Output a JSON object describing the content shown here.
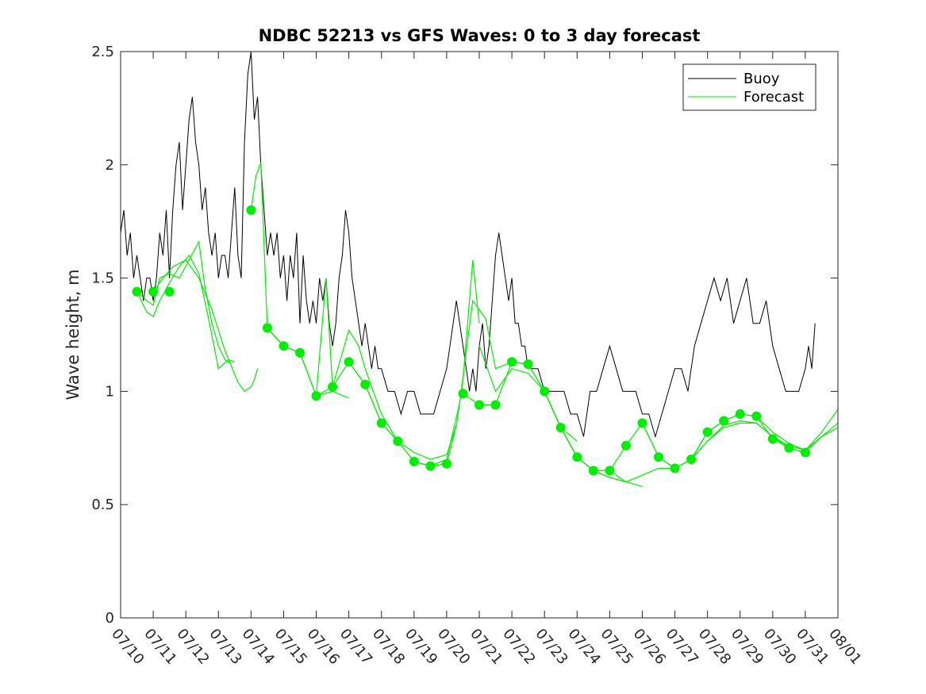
{
  "chart_data": {
    "type": "line",
    "title": "NDBC 52213 vs GFS Waves: 0 to 3 day forecast",
    "xlabel": "",
    "ylabel": "Wave height, m",
    "xlim": [
      0,
      22
    ],
    "ylim": [
      0,
      2.5
    ],
    "y_ticks": [
      0,
      0.5,
      1,
      1.5,
      2,
      2.5
    ],
    "y_tick_labels": [
      "0",
      "0.5",
      "1",
      "1.5",
      "2",
      "2.5"
    ],
    "x_tick_labels": [
      "07/10",
      "07/11",
      "07/12",
      "07/13",
      "07/14",
      "07/15",
      "07/16",
      "07/17",
      "07/18",
      "07/19",
      "07/20",
      "07/21",
      "07/22",
      "07/23",
      "07/24",
      "07/25",
      "07/26",
      "07/27",
      "07/28",
      "07/29",
      "07/30",
      "07/31",
      "08/01"
    ],
    "grid": false,
    "legend_position": "top-right",
    "legend": [
      {
        "label": "Buoy",
        "color": "#000000"
      },
      {
        "label": "Forecast",
        "color": "#00ee00"
      }
    ],
    "colors": {
      "buoy": "#000000",
      "forecast": "#00ee00"
    },
    "series": [
      {
        "name": "Buoy",
        "x": [
          0,
          0.1,
          0.2,
          0.3,
          0.4,
          0.5,
          0.6,
          0.7,
          0.8,
          0.9,
          1.0,
          1.1,
          1.2,
          1.3,
          1.4,
          1.5,
          1.6,
          1.7,
          1.8,
          1.9,
          2.0,
          2.1,
          2.2,
          2.3,
          2.4,
          2.5,
          2.6,
          2.7,
          2.8,
          2.9,
          3.0,
          3.1,
          3.2,
          3.3,
          3.4,
          3.5,
          3.6,
          3.7,
          3.8,
          3.9,
          4.0,
          4.1,
          4.2,
          4.3,
          4.4,
          4.5,
          4.6,
          4.7,
          4.8,
          4.9,
          5.0,
          5.1,
          5.2,
          5.3,
          5.4,
          5.5,
          5.6,
          5.7,
          5.8,
          5.9,
          6.0,
          6.1,
          6.2,
          6.3,
          6.4,
          6.5,
          6.6,
          6.7,
          6.8,
          6.9,
          7.0,
          7.1,
          7.2,
          7.3,
          7.4,
          7.5,
          7.6,
          7.7,
          7.8,
          7.9,
          8.0,
          8.2,
          8.4,
          8.6,
          8.8,
          9.0,
          9.2,
          9.4,
          9.6,
          9.8,
          10.0,
          10.1,
          10.2,
          10.3,
          10.4,
          10.5,
          10.6,
          10.7,
          10.8,
          10.9,
          11.0,
          11.1,
          11.2,
          11.3,
          11.4,
          11.5,
          11.6,
          11.7,
          11.8,
          11.9,
          12.0,
          12.1,
          12.2,
          12.3,
          12.4,
          12.5,
          12.6,
          12.8,
          13.0,
          13.2,
          13.4,
          13.6,
          13.8,
          14.0,
          14.2,
          14.4,
          14.6,
          14.8,
          15.0,
          15.2,
          15.4,
          15.6,
          15.8,
          16.0,
          16.2,
          16.4,
          16.6,
          16.8,
          17.0,
          17.2,
          17.4,
          17.6,
          17.8,
          18.0,
          18.2,
          18.4,
          18.6,
          18.8,
          19.0,
          19.2,
          19.4,
          19.6,
          19.8,
          20.0,
          20.2,
          20.4,
          20.6,
          20.8,
          21.0,
          21.1,
          21.2,
          21.3
        ],
        "values": [
          1.7,
          1.8,
          1.6,
          1.7,
          1.5,
          1.6,
          1.5,
          1.4,
          1.5,
          1.5,
          1.4,
          1.5,
          1.7,
          1.6,
          1.8,
          1.5,
          1.8,
          2.0,
          2.1,
          1.8,
          2.0,
          2.2,
          2.3,
          2.1,
          2.0,
          1.8,
          1.9,
          1.7,
          1.6,
          1.7,
          1.5,
          1.6,
          1.6,
          1.5,
          1.7,
          1.9,
          1.6,
          1.5,
          2.1,
          2.4,
          2.5,
          2.2,
          2.3,
          2.0,
          1.8,
          1.6,
          1.7,
          1.6,
          1.7,
          1.5,
          1.6,
          1.4,
          1.6,
          1.5,
          1.7,
          1.3,
          1.6,
          1.4,
          1.3,
          1.4,
          1.3,
          1.5,
          1.4,
          1.5,
          1.3,
          1.2,
          1.3,
          1.5,
          1.6,
          1.8,
          1.7,
          1.5,
          1.4,
          1.3,
          1.2,
          1.3,
          1.2,
          1.1,
          1.2,
          1.1,
          1.1,
          1.0,
          1.0,
          0.9,
          1.0,
          1.0,
          0.9,
          0.9,
          0.9,
          1.0,
          1.1,
          1.2,
          1.3,
          1.4,
          1.3,
          1.2,
          1.1,
          1.0,
          1.1,
          1.0,
          1.2,
          1.3,
          1.1,
          1.2,
          1.4,
          1.6,
          1.7,
          1.6,
          1.5,
          1.4,
          1.5,
          1.3,
          1.3,
          1.2,
          1.2,
          1.1,
          1.1,
          1.1,
          1.0,
          1.0,
          1.0,
          1.0,
          0.9,
          0.9,
          0.8,
          1.0,
          1.0,
          1.1,
          1.2,
          1.1,
          1.0,
          1.0,
          1.0,
          0.9,
          0.9,
          0.8,
          0.9,
          1.0,
          1.1,
          1.1,
          1.0,
          1.2,
          1.3,
          1.4,
          1.5,
          1.4,
          1.5,
          1.3,
          1.4,
          1.5,
          1.3,
          1.3,
          1.4,
          1.2,
          1.1,
          1.0,
          1.0,
          1.0,
          1.1,
          1.2,
          1.1,
          1.3
        ]
      },
      {
        "name": "Forecast",
        "segments": [
          {
            "x": [
              0.5,
              0.8,
              1.0,
              1.2,
              1.5,
              1.8,
              2.1,
              2.4,
              2.7,
              3.0,
              3.3,
              3.5
            ],
            "values": [
              1.44,
              1.35,
              1.33,
              1.4,
              1.48,
              1.55,
              1.6,
              1.52,
              1.32,
              1.1,
              1.14,
              1.13
            ]
          },
          {
            "x": [
              0.5,
              0.8,
              1.0,
              1.2,
              1.5,
              1.8,
              2.1,
              2.4,
              2.6,
              2.8,
              3.0,
              3.2,
              3.4
            ],
            "values": [
              1.44,
              1.4,
              1.38,
              1.5,
              1.52,
              1.5,
              1.58,
              1.66,
              1.45,
              1.3,
              1.2,
              1.14,
              1.12
            ]
          },
          {
            "x": [
              1.0,
              1.3,
              1.6,
              2.0,
              2.4,
              2.8,
              3.2,
              3.6,
              3.8,
              4.0,
              4.1,
              4.2
            ],
            "values": [
              1.44,
              1.5,
              1.55,
              1.58,
              1.5,
              1.36,
              1.18,
              1.04,
              1.0,
              1.02,
              1.05,
              1.1
            ]
          },
          {
            "x": [
              4.0,
              4.15,
              4.3,
              4.5,
              4.8,
              5.0,
              5.5,
              6.0,
              6.5,
              7.0
            ],
            "values": [
              1.8,
              1.95,
              2.01,
              1.28,
              1.23,
              1.2,
              1.17,
              0.98,
              1.0,
              0.97
            ]
          },
          {
            "x": [
              4.5,
              5.0,
              5.5,
              6.0,
              6.3,
              6.5,
              7.0,
              7.5,
              8.0,
              8.5,
              9.0,
              9.5,
              10.0
            ],
            "values": [
              1.28,
              1.2,
              1.17,
              0.98,
              1.5,
              1.02,
              1.13,
              1.03,
              0.86,
              0.78,
              0.69,
              0.67,
              0.68
            ]
          },
          {
            "x": [
              6.0,
              6.5,
              7.0,
              7.3,
              7.5,
              8.0,
              8.5,
              9.0,
              9.5,
              10.0,
              10.3
            ],
            "values": [
              0.98,
              1.02,
              1.27,
              1.2,
              1.1,
              0.9,
              0.78,
              0.73,
              0.7,
              0.72,
              0.85
            ]
          },
          {
            "x": [
              7.0,
              7.5,
              8.0,
              8.5,
              9.0,
              9.5,
              10.0,
              10.3,
              10.5,
              10.8,
              11.0
            ],
            "values": [
              1.13,
              1.03,
              0.86,
              0.78,
              0.69,
              0.67,
              0.68,
              0.85,
              1.05,
              1.58,
              1.3
            ]
          },
          {
            "x": [
              9.0,
              9.5,
              10.0,
              10.4,
              10.8,
              11.2,
              11.5,
              12.0,
              12.5,
              13.0,
              13.5,
              14.0
            ],
            "values": [
              0.69,
              0.67,
              0.7,
              0.95,
              1.4,
              1.32,
              1.1,
              1.13,
              1.12,
              1.0,
              0.84,
              0.78
            ]
          },
          {
            "x": [
              10.5,
              11.0,
              11.5,
              12.0,
              12.5,
              13.0,
              13.5,
              14.0,
              14.5,
              15.0,
              15.5
            ],
            "values": [
              0.99,
              0.94,
              0.94,
              1.13,
              1.12,
              1.0,
              0.84,
              0.71,
              0.65,
              0.65,
              0.6
            ]
          },
          {
            "x": [
              11.0,
              11.5,
              12.0,
              12.5,
              13.0,
              13.5,
              14.0,
              14.5,
              15.0,
              15.5,
              16.0
            ],
            "values": [
              1.2,
              1.0,
              1.1,
              1.08,
              1.0,
              0.84,
              0.71,
              0.65,
              0.62,
              0.6,
              0.58
            ]
          },
          {
            "x": [
              13.0,
              13.5,
              14.0,
              14.5,
              15.0,
              15.5,
              16.0,
              16.5,
              17.0,
              17.5,
              18.0
            ],
            "values": [
              1.0,
              0.84,
              0.71,
              0.65,
              0.65,
              0.76,
              0.86,
              0.71,
              0.66,
              0.7,
              0.82
            ]
          },
          {
            "x": [
              14.5,
              15.0,
              15.5,
              16.0,
              16.5,
              17.0,
              17.5,
              18.0,
              18.5,
              19.0,
              19.5,
              20.0,
              20.5,
              21.0
            ],
            "values": [
              0.65,
              0.62,
              0.6,
              0.63,
              0.66,
              0.66,
              0.7,
              0.78,
              0.85,
              0.87,
              0.86,
              0.8,
              0.75,
              0.73
            ]
          },
          {
            "x": [
              16.0,
              16.5,
              17.0,
              17.5,
              18.0,
              18.5,
              19.0,
              19.5,
              20.0,
              20.5,
              21.0,
              21.5,
              22.0
            ],
            "values": [
              0.86,
              0.71,
              0.66,
              0.7,
              0.82,
              0.87,
              0.9,
              0.89,
              0.79,
              0.75,
              0.73,
              0.8,
              0.84
            ]
          },
          {
            "x": [
              17.5,
              18.0,
              18.5,
              19.0,
              19.5,
              20.0,
              20.5,
              21.0,
              21.5,
              22.0
            ],
            "values": [
              0.7,
              0.78,
              0.84,
              0.86,
              0.86,
              0.8,
              0.76,
              0.74,
              0.82,
              0.92
            ]
          },
          {
            "x": [
              18.0,
              18.5,
              19.0,
              19.5,
              20.0,
              20.5,
              21.0,
              21.5,
              22.0
            ],
            "values": [
              0.82,
              0.87,
              0.9,
              0.89,
              0.82,
              0.77,
              0.74,
              0.8,
              0.86
            ]
          }
        ],
        "marker_x": [
          0.5,
          1.0,
          1.5,
          4.0,
          4.5,
          5.0,
          5.5,
          6.0,
          6.5,
          7.0,
          7.5,
          8.0,
          8.5,
          9.0,
          9.5,
          10.0,
          10.5,
          11.0,
          11.5,
          12.0,
          12.5,
          13.0,
          13.5,
          14.0,
          14.5,
          15.0,
          15.5,
          16.0,
          16.5,
          17.0,
          17.5,
          18.0,
          18.5,
          19.0,
          19.5,
          20.0,
          20.5,
          21.0
        ],
        "marker_values": [
          1.44,
          1.44,
          1.44,
          1.8,
          1.28,
          1.2,
          1.17,
          0.98,
          1.02,
          1.13,
          1.03,
          0.86,
          0.78,
          0.69,
          0.67,
          0.68,
          0.99,
          0.94,
          0.94,
          1.13,
          1.12,
          1.0,
          0.84,
          0.71,
          0.65,
          0.65,
          0.76,
          0.86,
          0.71,
          0.66,
          0.7,
          0.82,
          0.87,
          0.9,
          0.89,
          0.79,
          0.75,
          0.73
        ]
      }
    ]
  }
}
